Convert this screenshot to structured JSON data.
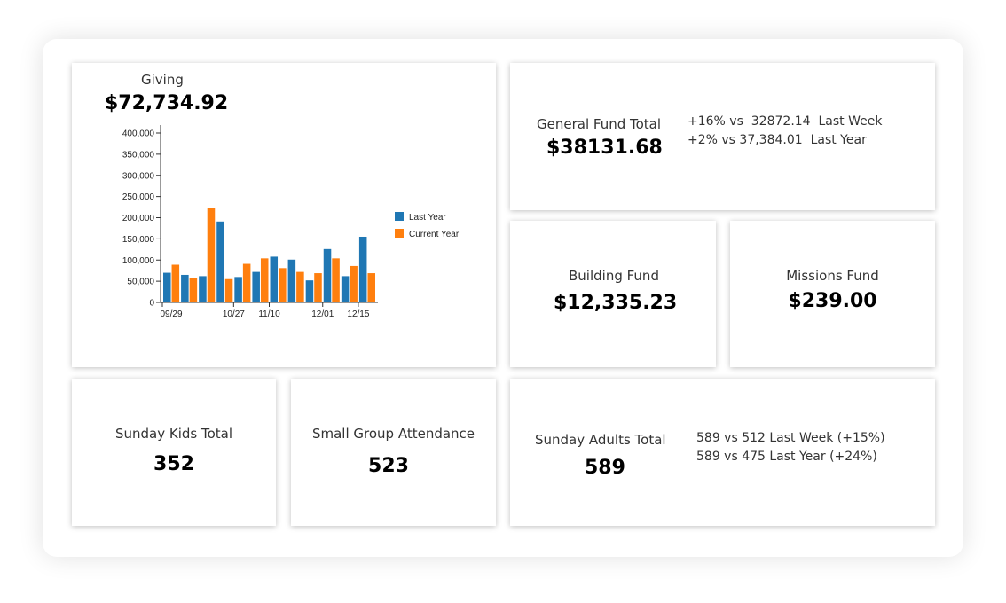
{
  "giving": {
    "label": "Giving",
    "total": "$72,734.92"
  },
  "general_fund": {
    "label": "General Fund Total",
    "value": "$38131.68",
    "vs_week": "+16% vs  32872.14  Last Week",
    "vs_year": "+2% vs 37,384.01  Last Year"
  },
  "building_fund": {
    "label": "Building Fund",
    "value": "$12,335.23"
  },
  "missions_fund": {
    "label": "Missions Fund",
    "value": "$239.00"
  },
  "sunday_kids": {
    "label": "Sunday Kids Total",
    "value": "352"
  },
  "small_group": {
    "label": "Small Group Attendance",
    "value": "523"
  },
  "sunday_adults": {
    "label": "Sunday Adults Total",
    "value": "589",
    "vs_week": "589 vs 512 Last Week (+15%)",
    "vs_year": "589 vs 475 Last Year (+24%)"
  },
  "chart_data": {
    "type": "bar",
    "ylim": [
      0,
      400000
    ],
    "yticks": [
      "0",
      "50,000",
      "100,000",
      "150,000",
      "200,000",
      "250,000",
      "300,000",
      "350,000",
      "400,000"
    ],
    "xtick_labels": [
      {
        "index": 0,
        "label": "09/29"
      },
      {
        "index": 4,
        "label": "10/27"
      },
      {
        "index": 6,
        "label": "11/10"
      },
      {
        "index": 9,
        "label": "12/01"
      },
      {
        "index": 11,
        "label": "12/15"
      }
    ],
    "legend_position": "right",
    "series": [
      {
        "name": "Last Year",
        "color": "#1f77b4",
        "values": [
          70000,
          65000,
          62000,
          191000,
          60000,
          72000,
          108000,
          101000,
          52000,
          126000,
          62000,
          155000
        ]
      },
      {
        "name": "Current Year",
        "color": "#ff7f0e",
        "values": [
          89000,
          57000,
          222000,
          55000,
          91000,
          104000,
          81000,
          72000,
          69000,
          104000,
          86000,
          69000
        ]
      }
    ]
  }
}
